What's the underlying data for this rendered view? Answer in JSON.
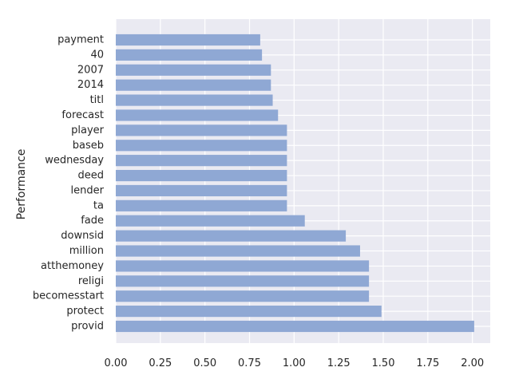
{
  "chart_data": {
    "type": "bar",
    "orientation": "horizontal",
    "categories": [
      "provid",
      "protect",
      "becomesstart",
      "religi",
      "atthemoney",
      "million",
      "downsid",
      "fade",
      "ta",
      "lender",
      "deed",
      "wednesday",
      "baseb",
      "player",
      "forecast",
      "titl",
      "2014",
      "2007",
      "40",
      "payment"
    ],
    "values": [
      2.01,
      1.49,
      1.42,
      1.42,
      1.42,
      1.37,
      1.29,
      1.06,
      0.96,
      0.96,
      0.96,
      0.96,
      0.96,
      0.96,
      0.91,
      0.88,
      0.87,
      0.87,
      0.82,
      0.81
    ],
    "xlabel": "",
    "ylabel": "Performance",
    "xlim": [
      0,
      2.1
    ],
    "xticks": [
      "0.00",
      "0.25",
      "0.50",
      "0.75",
      "1.00",
      "1.25",
      "1.50",
      "1.75",
      "2.00"
    ],
    "grid": true,
    "colors": {
      "bar": "#8fa8d4",
      "plot_background": "#eaeaf2",
      "grid": "#ffffff",
      "text": "#262626"
    }
  }
}
